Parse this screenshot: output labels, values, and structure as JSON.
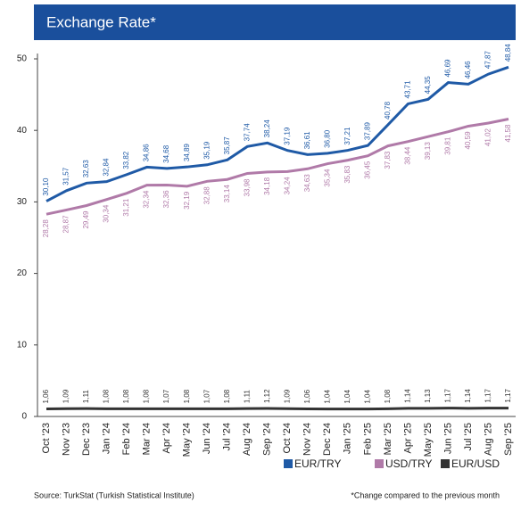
{
  "chart_data": {
    "type": "line",
    "title": "Exchange Rate*",
    "categories": [
      "Oct '23",
      "Nov '23",
      "Dec '23",
      "Jan '24",
      "Feb '24",
      "Mar '24",
      "Apr '24",
      "May '24",
      "Jun '24",
      "Jul '24",
      "Aug '24",
      "Sep '24",
      "Oct '24",
      "Nov '24",
      "Dec '24",
      "Jan '25",
      "Feb '25",
      "Mar '25",
      "Apr '25",
      "May '25",
      "Jun '25",
      "Jul '25",
      "Aug '25",
      "Sep '25"
    ],
    "series": [
      {
        "name": "EUR/TRY",
        "color": "#1f5aa6",
        "values": [
          30.1,
          31.57,
          32.63,
          32.84,
          33.82,
          34.86,
          34.68,
          34.89,
          35.19,
          35.87,
          37.74,
          38.24,
          37.19,
          36.61,
          36.8,
          37.21,
          37.89,
          40.78,
          43.71,
          44.35,
          46.69,
          46.46,
          47.87,
          48.84
        ],
        "value_labels": [
          "30,10",
          "31,57",
          "32,63",
          "32,84",
          "33,82",
          "34,86",
          "34,68",
          "34,89",
          "35,19",
          "35,87",
          "37,74",
          "38,24",
          "37,19",
          "36,61",
          "36,80",
          "37,21",
          "37,89",
          "40,78",
          "43,71",
          "44,35",
          "46,69",
          "46,46",
          "47,87",
          "48,84"
        ]
      },
      {
        "name": "USD/TRY",
        "color": "#b07aa8",
        "values": [
          28.28,
          28.87,
          29.49,
          30.34,
          31.21,
          32.34,
          32.36,
          32.19,
          32.88,
          33.14,
          33.98,
          34.18,
          34.24,
          34.63,
          35.34,
          35.83,
          36.45,
          37.83,
          38.44,
          39.13,
          39.81,
          40.59,
          41.02,
          41.58
        ],
        "value_labels": [
          "28,28",
          "28,87",
          "29,49",
          "30,34",
          "31,21",
          "32,34",
          "32,36",
          "32,19",
          "32,88",
          "33,14",
          "33,98",
          "34,18",
          "34,24",
          "34,63",
          "35,34",
          "35,83",
          "36,45",
          "37,83",
          "38,44",
          "39,13",
          "39,81",
          "40,59",
          "41,02",
          "41,58"
        ]
      },
      {
        "name": "EUR/USD",
        "color": "#333333",
        "values": [
          1.06,
          1.09,
          1.11,
          1.08,
          1.08,
          1.08,
          1.07,
          1.08,
          1.07,
          1.08,
          1.11,
          1.12,
          1.09,
          1.06,
          1.04,
          1.04,
          1.04,
          1.08,
          1.14,
          1.13,
          1.17,
          1.14,
          1.17,
          1.17
        ],
        "value_labels": [
          "1,06",
          "1,09",
          "1,11",
          "1,08",
          "1,08",
          "1,08",
          "1,07",
          "1,08",
          "1,07",
          "1,08",
          "1,11",
          "1,12",
          "1,09",
          "1,06",
          "1,04",
          "1,04",
          "1,04",
          "1,08",
          "1,14",
          "1,13",
          "1,17",
          "1,14",
          "1,17",
          "1,17"
        ]
      }
    ],
    "ylim": [
      0,
      50
    ],
    "yticks": [
      0,
      10,
      20,
      30,
      40,
      50
    ],
    "grid": false,
    "source": "Source: TurkStat (Turkish Statistical Institute)",
    "note": "*Change compared to the previous month"
  }
}
